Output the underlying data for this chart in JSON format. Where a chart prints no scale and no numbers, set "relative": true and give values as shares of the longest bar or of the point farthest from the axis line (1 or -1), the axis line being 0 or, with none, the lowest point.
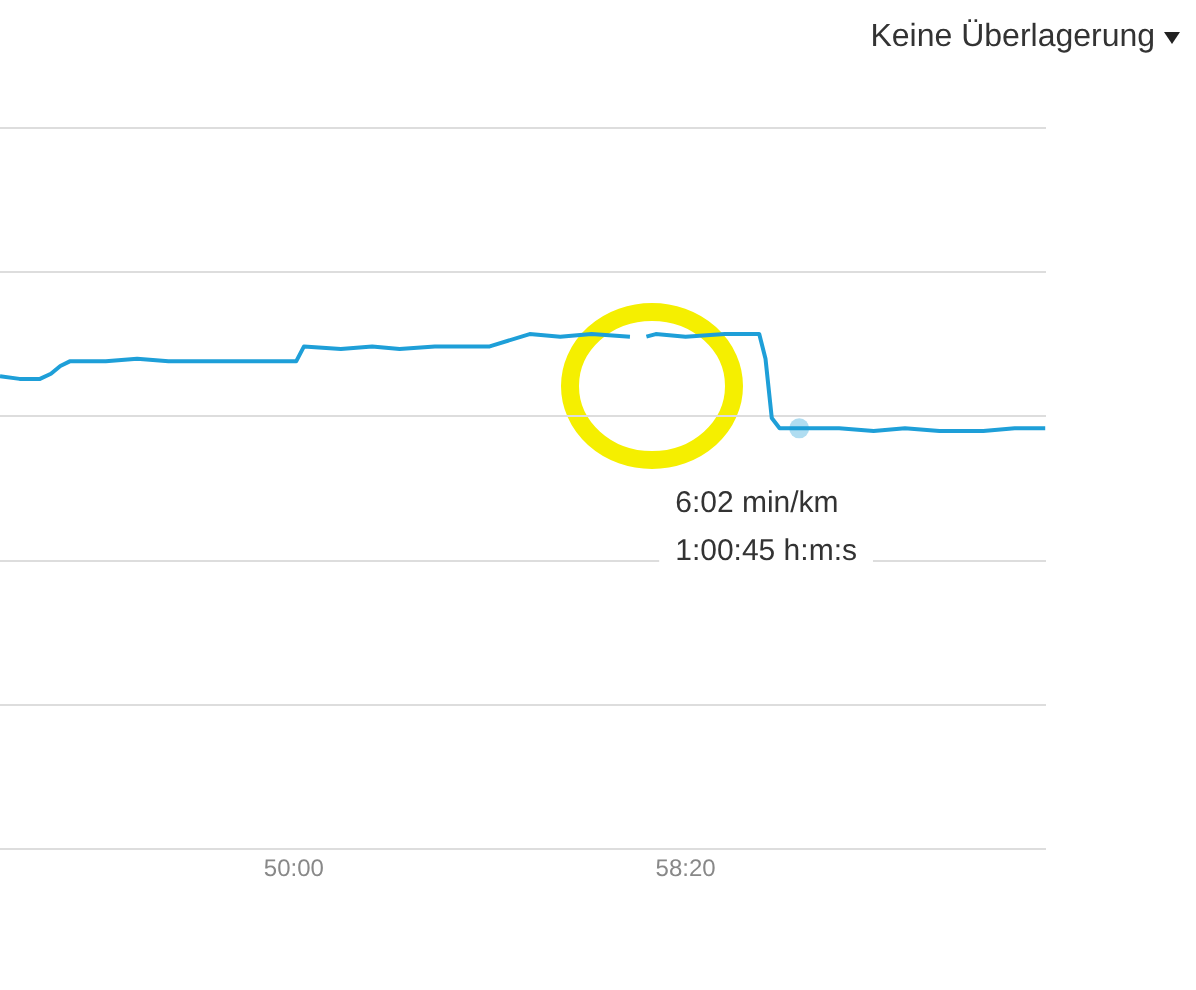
{
  "chart_data": {
    "type": "line",
    "relative": true,
    "color": "#1e9fd8",
    "x": [
      2625,
      2650,
      2676,
      2690,
      2702,
      2714,
      2760,
      2800,
      2840,
      2880,
      2920,
      2960,
      3003,
      3013,
      3060,
      3100,
      3135,
      3180,
      3220,
      3250,
      3301,
      3340,
      3380,
      3429,
      3436,
      3450,
      3462,
      3500,
      3550,
      3594,
      3602,
      3610,
      3620,
      3645,
      3696,
      3740,
      3780,
      3824,
      3880,
      3920,
      3959
    ],
    "values": [
      0.918,
      0.913,
      0.913,
      0.923,
      0.938,
      0.947,
      0.947,
      0.952,
      0.947,
      0.947,
      0.947,
      0.947,
      0.947,
      0.976,
      0.971,
      0.976,
      0.971,
      0.976,
      0.976,
      0.976,
      1.0,
      0.995,
      1.0,
      0.995,
      null,
      0.995,
      1.0,
      0.995,
      1.0,
      1.0,
      0.952,
      0.837,
      0.817,
      0.817,
      0.817,
      0.812,
      0.817,
      0.812,
      0.812,
      0.817,
      0.817
    ],
    "xlim": [
      2625,
      3960
    ],
    "xticks": [
      {
        "value": 3000,
        "label": "50:00"
      },
      {
        "value": 3500,
        "label": "58:20"
      }
    ],
    "grid": "y",
    "marker": "none",
    "legend": false,
    "annotations": [
      {
        "text": "6:02 min/km\n1:00:45 h:m:s",
        "x": 3645,
        "y": 0.817
      },
      "Keine Überlagerung"
    ]
  }
}
